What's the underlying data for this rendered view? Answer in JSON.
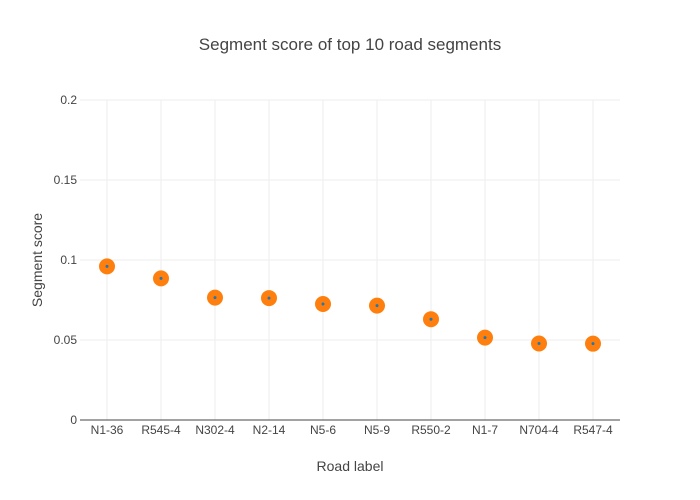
{
  "chart_data": {
    "type": "scatter",
    "title": "Segment score of top 10 road segments",
    "xlabel": "Road label",
    "ylabel": "Segment score",
    "categories": [
      "N1-36",
      "R545-4",
      "N302-4",
      "N2-14",
      "N5-6",
      "N5-9",
      "R550-2",
      "N1-7",
      "N704-4",
      "R547-4"
    ],
    "values": [
      0.096,
      0.0885,
      0.0765,
      0.0762,
      0.0725,
      0.0715,
      0.063,
      0.0515,
      0.0478,
      0.0477
    ],
    "ylim": [
      0,
      0.2
    ],
    "yticks": [
      "0",
      "0.05",
      "0.1",
      "0.15",
      "0.2"
    ],
    "grid": true,
    "colors": {
      "marker": "#ff7f0e",
      "marker_center": "#1f77b4",
      "grid": "#eeeeee",
      "axis": "#444444"
    }
  }
}
